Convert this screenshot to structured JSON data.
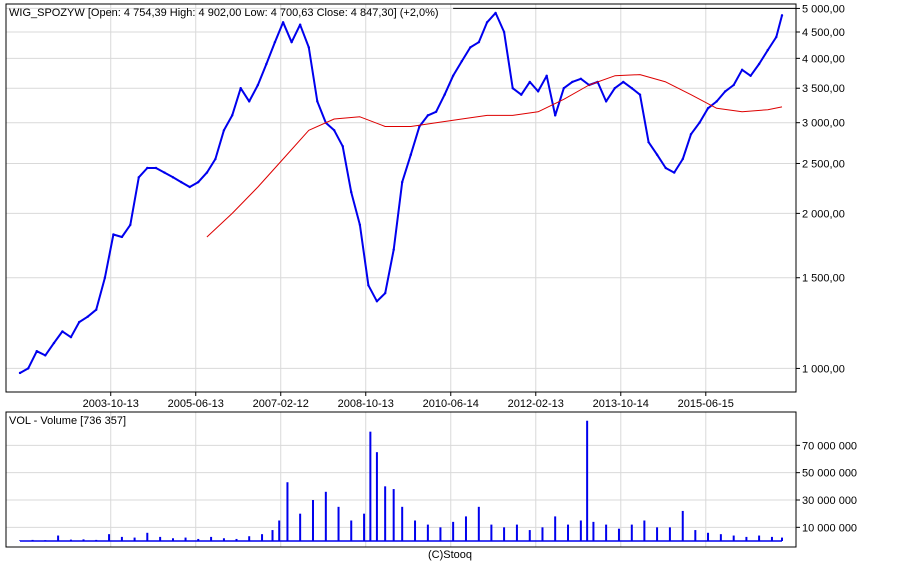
{
  "chart_data": [
    {
      "type": "line",
      "title": "WIG_SPOZYW [Open: 4 754,39  High: 4 902,00  Low: 4 700,63  Close: 4 847,30] (+2,0%)",
      "xlabel": "",
      "ylabel": "",
      "log_scale_y": true,
      "grid": true,
      "x_tick_labels": [
        "2003-10-13",
        "2005-06-13",
        "2007-02-12",
        "2008-10-13",
        "2010-06-14",
        "2012-02-13",
        "2013-10-14",
        "2015-06-15"
      ],
      "x_tick_dates": [
        "2003-10-13",
        "2005-06-13",
        "2007-02-12",
        "2008-10-13",
        "2010-06-14",
        "2012-02-13",
        "2013-10-14",
        "2015-06-15"
      ],
      "x_range": [
        "2002-01-01",
        "2016-12-12"
      ],
      "y_ticks": [
        1000,
        1500,
        2000,
        2500,
        3000,
        3500,
        4000,
        4500,
        5000
      ],
      "y_tick_labels": [
        "1 000,00",
        "1 500,00",
        "2 000,00",
        "2 500,00",
        "3 000,00",
        "3 500,00",
        "4 000,00",
        "4 500,00",
        "5 000,00"
      ],
      "ylim": [
        900,
        5100
      ],
      "series": [
        {
          "name": "",
          "color": "#0000ee",
          "x": [
            "2002-01-01",
            "2002-03-01",
            "2002-05-01",
            "2002-07-01",
            "2002-09-01",
            "2002-11-01",
            "2003-01-01",
            "2003-03-01",
            "2003-05-01",
            "2003-07-01",
            "2003-09-01",
            "2003-11-01",
            "2004-01-01",
            "2004-03-01",
            "2004-05-01",
            "2004-07-01",
            "2004-09-01",
            "2004-11-01",
            "2005-01-01",
            "2005-03-01",
            "2005-05-01",
            "2005-07-01",
            "2005-09-01",
            "2005-11-01",
            "2006-01-01",
            "2006-03-01",
            "2006-05-01",
            "2006-07-01",
            "2006-09-01",
            "2006-11-01",
            "2007-01-01",
            "2007-03-01",
            "2007-05-01",
            "2007-07-01",
            "2007-09-01",
            "2007-11-01",
            "2008-01-01",
            "2008-03-01",
            "2008-05-01",
            "2008-07-01",
            "2008-09-01",
            "2008-11-01",
            "2009-01-01",
            "2009-03-01",
            "2009-05-01",
            "2009-07-01",
            "2009-09-01",
            "2009-11-01",
            "2010-01-01",
            "2010-03-01",
            "2010-05-01",
            "2010-07-01",
            "2010-09-01",
            "2010-11-01",
            "2011-01-01",
            "2011-03-01",
            "2011-05-01",
            "2011-07-01",
            "2011-09-01",
            "2011-11-01",
            "2012-01-01",
            "2012-03-01",
            "2012-05-01",
            "2012-07-01",
            "2012-09-01",
            "2012-11-01",
            "2013-01-01",
            "2013-03-01",
            "2013-05-01",
            "2013-07-01",
            "2013-09-01",
            "2013-11-01",
            "2014-01-01",
            "2014-03-01",
            "2014-05-01",
            "2014-07-01",
            "2014-09-01",
            "2014-11-01",
            "2015-01-01",
            "2015-03-01",
            "2015-05-01",
            "2015-07-01",
            "2015-09-01",
            "2015-11-01",
            "2016-01-01",
            "2016-03-01",
            "2016-05-01",
            "2016-07-01",
            "2016-09-01",
            "2016-11-01",
            "2016-12-12"
          ],
          "values": [
            980,
            1000,
            1080,
            1060,
            1120,
            1180,
            1150,
            1230,
            1260,
            1300,
            1500,
            1820,
            1800,
            1900,
            2350,
            2450,
            2450,
            2400,
            2350,
            2300,
            2250,
            2300,
            2400,
            2550,
            2900,
            3100,
            3500,
            3300,
            3550,
            3900,
            4300,
            4700,
            4300,
            4650,
            4200,
            3300,
            3000,
            2900,
            2700,
            2200,
            1900,
            1450,
            1350,
            1400,
            1700,
            2300,
            2600,
            2950,
            3100,
            3150,
            3400,
            3700,
            3950,
            4200,
            4300,
            4700,
            4900,
            4500,
            3500,
            3400,
            3600,
            3450,
            3700,
            3100,
            3500,
            3600,
            3650,
            3550,
            3600,
            3300,
            3500,
            3600,
            3500,
            3400,
            2750,
            2600,
            2450,
            2400,
            2550,
            2850,
            3000,
            3200,
            3300,
            3450,
            3550,
            3800,
            3700,
            3900,
            4150,
            4400,
            4847
          ]
        },
        {
          "name": "",
          "color": "#dd0000",
          "x": [
            "2005-09-01",
            "2006-03-01",
            "2006-09-01",
            "2007-03-01",
            "2007-09-01",
            "2008-03-01",
            "2008-09-01",
            "2009-03-01",
            "2009-09-01",
            "2010-03-01",
            "2010-09-01",
            "2011-03-01",
            "2011-09-01",
            "2012-03-01",
            "2012-09-01",
            "2013-03-01",
            "2013-09-01",
            "2014-03-01",
            "2014-09-01",
            "2015-03-01",
            "2015-09-01",
            "2016-03-01",
            "2016-09-01",
            "2016-12-12"
          ],
          "values": [
            1800,
            2000,
            2250,
            2550,
            2900,
            3050,
            3080,
            2950,
            2950,
            3000,
            3050,
            3100,
            3100,
            3150,
            3330,
            3550,
            3700,
            3720,
            3600,
            3400,
            3200,
            3150,
            3180,
            3220
          ]
        }
      ],
      "reference_line": {
        "value": 5000,
        "color": "#000000"
      }
    },
    {
      "type": "bar",
      "title": "VOL - Volume [736 357]",
      "log_scale_y": false,
      "grid": true,
      "x_tick_labels": [],
      "x_range": [
        "2002-01-01",
        "2016-12-12"
      ],
      "ylim": [
        0,
        90000000
      ],
      "y_ticks": [
        10000000,
        30000000,
        50000000,
        70000000
      ],
      "y_tick_labels": [
        "10 000 000",
        "30 000 000",
        "50 000 000",
        "70 000 000"
      ],
      "series": [
        {
          "name": "",
          "color": "#0000ee",
          "x": [
            "2002-01-01",
            "2002-04-01",
            "2002-07-01",
            "2002-10-01",
            "2003-01-01",
            "2003-04-01",
            "2003-07-01",
            "2003-10-01",
            "2004-01-01",
            "2004-04-01",
            "2004-07-01",
            "2004-10-01",
            "2005-01-01",
            "2005-04-01",
            "2005-07-01",
            "2005-10-01",
            "2006-01-01",
            "2006-04-01",
            "2006-07-01",
            "2006-10-01",
            "2006-12-15",
            "2007-02-01",
            "2007-04-01",
            "2007-07-01",
            "2007-10-01",
            "2008-01-01",
            "2008-04-01",
            "2008-07-01",
            "2008-10-01",
            "2008-11-15",
            "2009-01-01",
            "2009-03-01",
            "2009-05-01",
            "2009-07-01",
            "2009-10-01",
            "2010-01-01",
            "2010-04-01",
            "2010-07-01",
            "2010-10-01",
            "2011-01-01",
            "2011-04-01",
            "2011-07-01",
            "2011-10-01",
            "2012-01-01",
            "2012-04-01",
            "2012-07-01",
            "2012-10-01",
            "2013-01-01",
            "2013-02-15",
            "2013-04-01",
            "2013-07-01",
            "2013-10-01",
            "2014-01-01",
            "2014-04-01",
            "2014-07-01",
            "2014-10-01",
            "2015-01-01",
            "2015-04-01",
            "2015-07-01",
            "2015-10-01",
            "2016-01-01",
            "2016-04-01",
            "2016-07-01",
            "2016-10-01",
            "2016-12-12"
          ],
          "values": [
            400000,
            800000,
            600000,
            4000000,
            1000000,
            1200000,
            800000,
            5000000,
            3000000,
            2500000,
            6000000,
            3000000,
            2000000,
            2500000,
            1500000,
            3000000,
            2000000,
            1500000,
            3500000,
            5000000,
            8000000,
            15000000,
            43000000,
            20000000,
            30000000,
            36000000,
            25000000,
            15000000,
            20000000,
            80000000,
            65000000,
            40000000,
            38000000,
            25000000,
            15000000,
            12000000,
            10000000,
            14000000,
            18000000,
            25000000,
            12000000,
            10000000,
            12000000,
            8000000,
            10000000,
            18000000,
            12000000,
            15000000,
            88000000,
            14000000,
            12000000,
            9000000,
            12000000,
            15000000,
            10000000,
            10000000,
            22000000,
            8000000,
            6000000,
            5000000,
            4000000,
            3000000,
            4000000,
            3000000,
            2500000
          ]
        }
      ]
    }
  ],
  "footer": {
    "credit": "(C)Stooq"
  }
}
